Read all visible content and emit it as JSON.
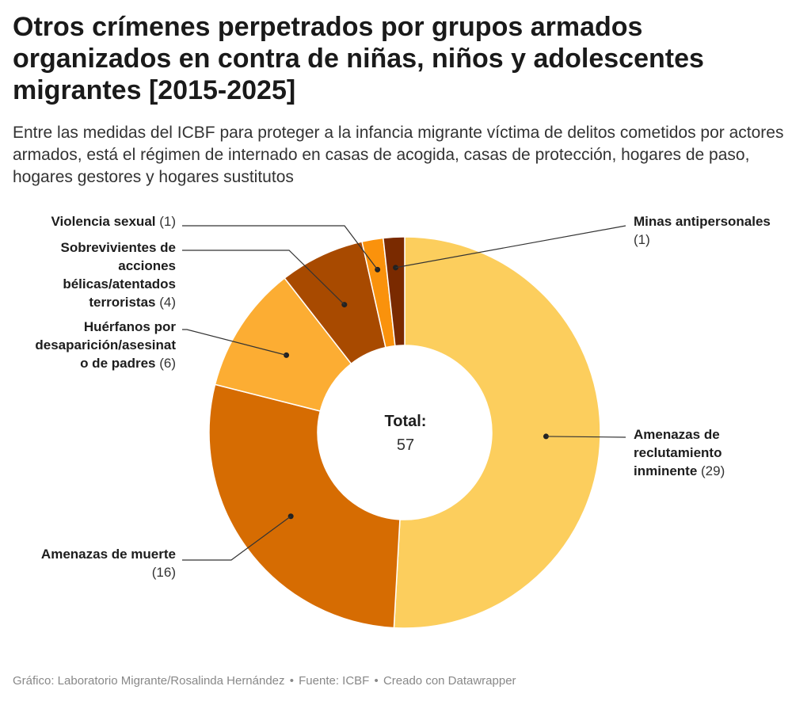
{
  "title": "Otros crímenes perpetrados por grupos armados organizados en contra de niñas, niños y adolescentes migrantes [2015-2025]",
  "subtitle": "Entre las medidas del ICBF para proteger a la infancia migrante víctima de delitos cometidos por actores armados, está el régimen de internado en casas de acogida, casas de protección, hogares de paso, hogares gestores y hogares sustitutos",
  "center": {
    "label": "Total:",
    "value": "57"
  },
  "footer": {
    "chart_credit": "Gráfico: Laboratorio Migrante/Rosalinda Hernández",
    "source": "Fuente: ICBF",
    "tool": "Creado con Datawrapper",
    "separator": "•"
  },
  "chart_data": {
    "type": "pie",
    "variant": "donut",
    "total": 57,
    "slices": [
      {
        "label": "Amenazas de reclutamiento inminente",
        "label_lines": [
          "Amenazas de",
          "reclutamiento",
          "inminente"
        ],
        "value": 29,
        "color": "#fcce5d"
      },
      {
        "label": "Amenazas de muerte",
        "label_lines": [
          "Amenazas de muerte"
        ],
        "value": 16,
        "color": "#d66c02"
      },
      {
        "label": "Huérfanos por desaparición/asesinato de padres",
        "label_lines": [
          "Huérfanos por",
          "desaparición/asesinat",
          "o de padres"
        ],
        "value": 6,
        "color": "#fcad33"
      },
      {
        "label": "Sobrevivientes de acciones bélicas/atentados terroristas",
        "label_lines": [
          "Sobrevivientes de",
          "acciones",
          "bélicas/atentados",
          "terroristas"
        ],
        "value": 4,
        "color": "#a84a00"
      },
      {
        "label": "Violencia sexual",
        "label_lines": [
          "Violencia sexual"
        ],
        "value": 1,
        "color": "#fa920c"
      },
      {
        "label": "Minas antipersonales",
        "label_lines": [
          "Minas antipersonales"
        ],
        "value": 1,
        "color": "#7a2a00"
      }
    ]
  }
}
